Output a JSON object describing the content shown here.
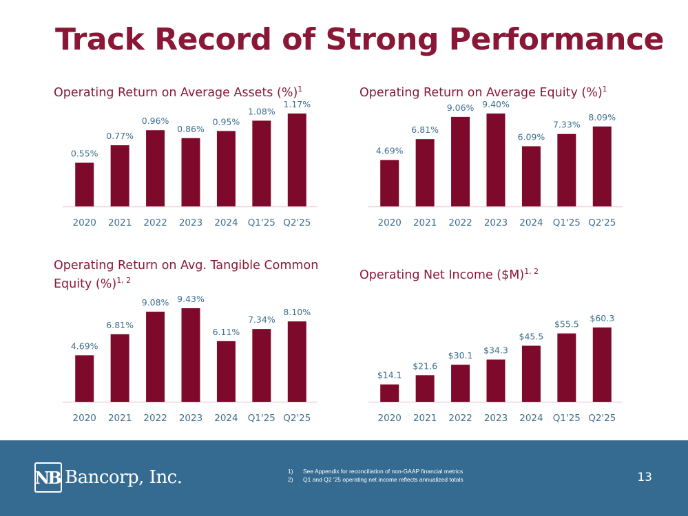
{
  "title": "Track Record of Strong Performance",
  "colors": {
    "accent": "#8a1736",
    "bar": "#7d0a2b",
    "label": "#3d6e8f",
    "axis": "#f0d2dc",
    "footer": "#366b91"
  },
  "chart_titles": [
    {
      "text": "Operating Return on Average Assets (%)",
      "sup": "1"
    },
    {
      "text": "Operating Return on Average Equity (%)",
      "sup": "1"
    },
    {
      "text": "Operating Return on Avg. Tangible Common Equity (%)",
      "sup": "1, 2"
    },
    {
      "text": "Operating Net Income ($M)",
      "sup": "1, 2"
    }
  ],
  "chart_data": [
    {
      "type": "bar",
      "title": "Operating Return on Average Assets (%)",
      "categories": [
        "2020",
        "2021",
        "2022",
        "2023",
        "2024",
        "Q1'25",
        "Q2'25"
      ],
      "values": [
        0.55,
        0.77,
        0.96,
        0.86,
        0.95,
        1.08,
        1.17
      ],
      "labels": [
        "0.55%",
        "0.77%",
        "0.96%",
        "0.86%",
        "0.95%",
        "1.08%",
        "1.17%"
      ],
      "ylim": [
        0,
        1.3
      ]
    },
    {
      "type": "bar",
      "title": "Operating Return on Average Equity (%)",
      "categories": [
        "2020",
        "2021",
        "2022",
        "2023",
        "2024",
        "Q1'25",
        "Q2'25"
      ],
      "values": [
        4.69,
        6.81,
        9.06,
        9.4,
        6.09,
        7.33,
        8.09
      ],
      "labels": [
        "4.69%",
        "6.81%",
        "9.06%",
        "9.40%",
        "6.09%",
        "7.33%",
        "8.09%"
      ],
      "ylim": [
        0,
        10.5
      ]
    },
    {
      "type": "bar",
      "title": "Operating Return on Avg. Tangible Common Equity (%)",
      "categories": [
        "2020",
        "2021",
        "2022",
        "2023",
        "2024",
        "Q1'25",
        "Q2'25"
      ],
      "values": [
        4.69,
        6.81,
        9.08,
        9.43,
        6.11,
        7.34,
        8.1
      ],
      "labels": [
        "4.69%",
        "6.81%",
        "9.08%",
        "9.43%",
        "6.11%",
        "7.34%",
        "8.10%"
      ],
      "ylim": [
        0,
        10.5
      ]
    },
    {
      "type": "bar",
      "title": "Operating Net Income ($M)",
      "categories": [
        "2020",
        "2021",
        "2022",
        "2023",
        "2024",
        "Q1'25",
        "Q2'25"
      ],
      "values": [
        14.1,
        21.6,
        30.1,
        34.3,
        45.5,
        55.5,
        60.3
      ],
      "labels": [
        "$14.1",
        "$21.6",
        "$30.1",
        "$34.3",
        "$45.5",
        "$55.5",
        "$60.3"
      ],
      "ylim": [
        0,
        66
      ]
    }
  ],
  "footer": {
    "logo_mark": "NB",
    "logo_text": "Bancorp, Inc.",
    "footnotes": [
      {
        "num": "1)",
        "text": "See Appendix for reconciliation of non-GAAP financial metrics"
      },
      {
        "num": "2)",
        "text": "Q1 and Q2 '25 operating net income reflects annualized totals"
      }
    ],
    "page_number": "13"
  }
}
